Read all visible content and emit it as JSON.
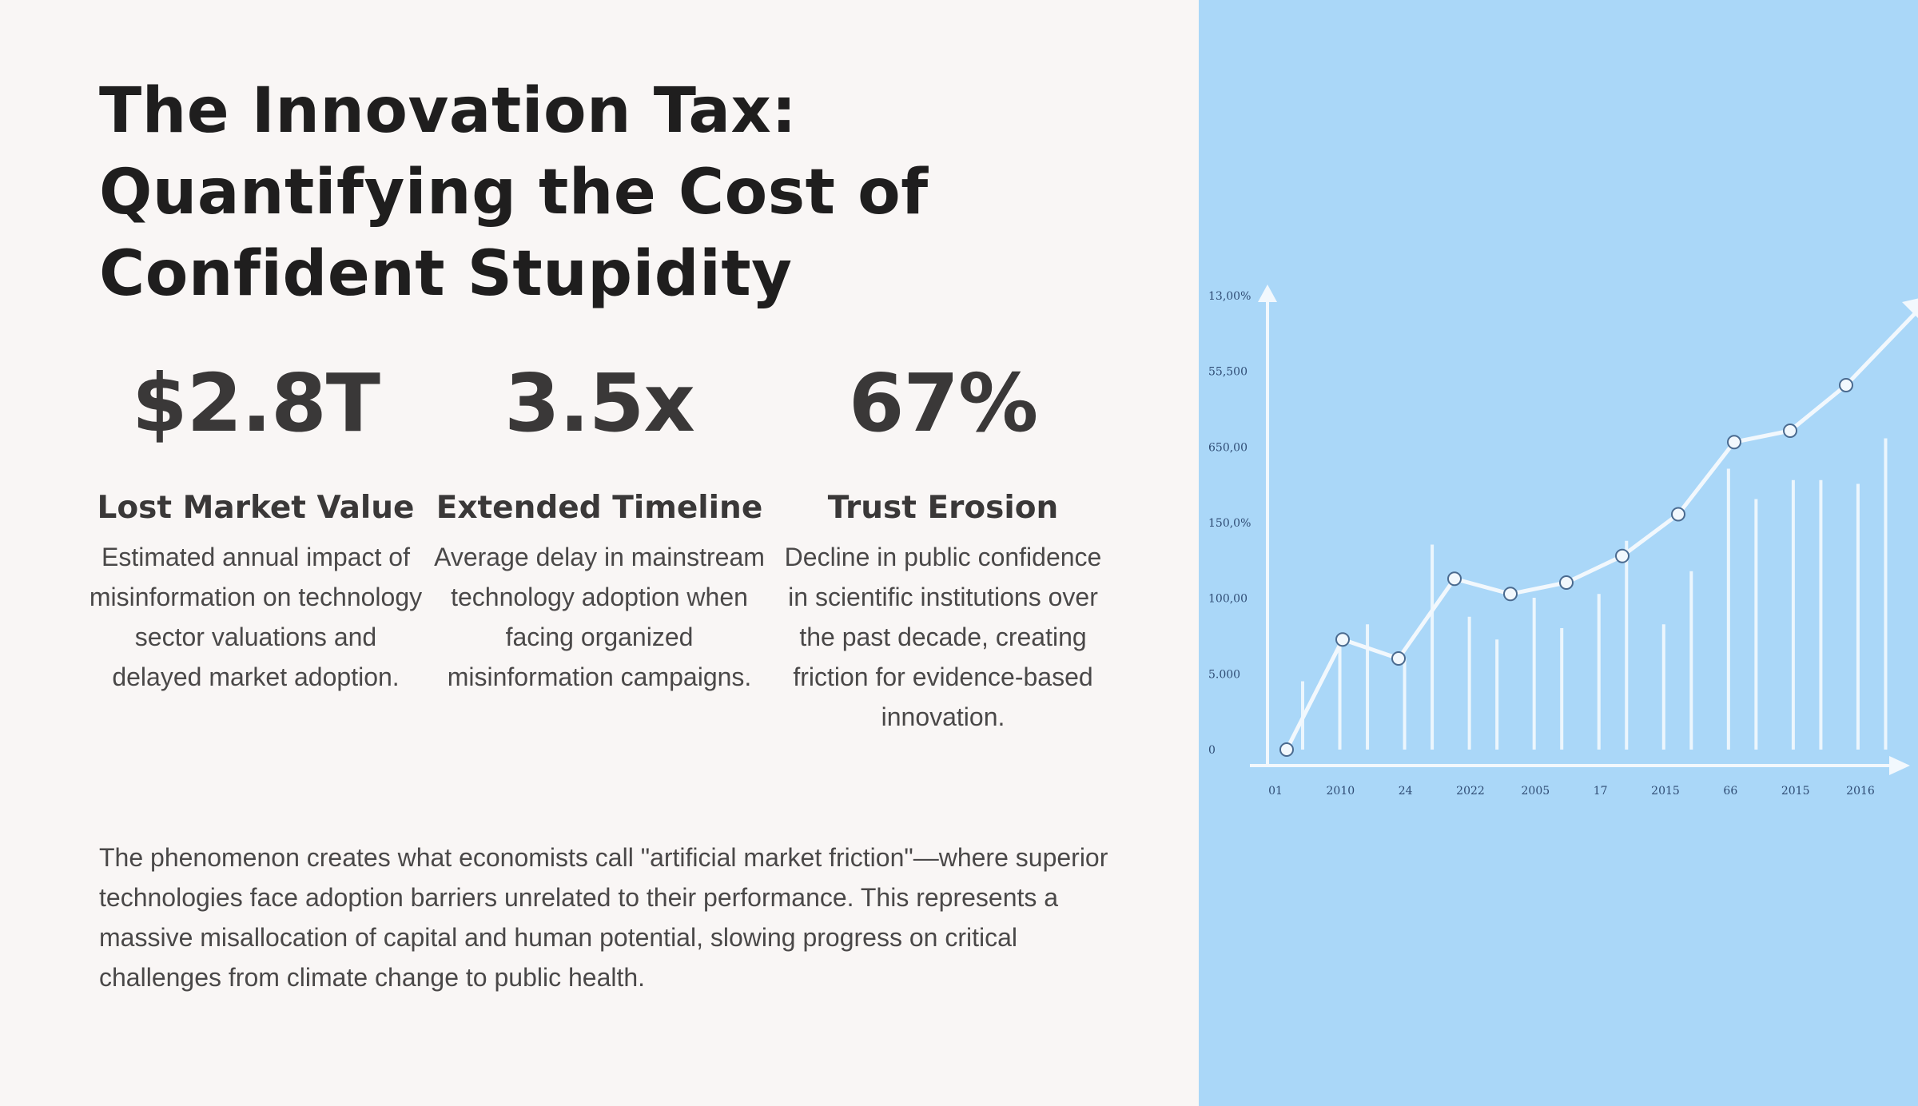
{
  "title": "The Innovation Tax: Quantifying the Cost of Confident Stupidity",
  "stats": [
    {
      "value": "$2.8T",
      "label": "Lost Market Value",
      "description": "Estimated annual impact of misinformation on technology sector valuations and delayed market adoption."
    },
    {
      "value": "3.5x",
      "label": "Extended Timeline",
      "description": "Average delay in mainstream technology adoption when facing organized misinformation campaigns."
    },
    {
      "value": "67%",
      "label": "Trust Erosion",
      "description": "Decline in public confidence in scientific institutions over the past decade, creating friction for evidence-based innovation."
    }
  ],
  "paragraph": "The phenomenon creates what economists call \"artificial market friction\"—where superior technologies face adoption barriers unrelated to their performance. This represents a massive misallocation of capital and human potential, slowing progress on critical challenges from climate change to public health.",
  "chart_data": {
    "type": "line",
    "title": "",
    "y_tick_labels": [
      "0",
      "5.000",
      "100,00",
      "150,0%",
      "650,00",
      "55,500",
      "13,00%"
    ],
    "x_tick_labels": [
      "01",
      "2010",
      "24",
      "2022",
      "2005",
      "17",
      "2015",
      "66",
      "2015",
      "2016"
    ],
    "line_points": [
      0,
      1.45,
      1.2,
      2.25,
      2.05,
      2.2,
      2.55,
      3.1,
      4.05,
      4.2,
      4.8
    ],
    "bars": [
      0.9,
      1.5,
      1.65,
      1.2,
      2.7,
      1.75,
      1.45,
      2.0,
      1.6,
      2.05,
      2.75,
      1.65,
      2.35,
      3.7,
      3.3,
      3.55,
      3.55,
      3.5,
      4.1
    ],
    "ylim": [
      0,
      6
    ],
    "trend": "upward",
    "colors": {
      "background": "#aad7f8",
      "line": "#f2f8fd",
      "text": "#2f4c74"
    }
  }
}
